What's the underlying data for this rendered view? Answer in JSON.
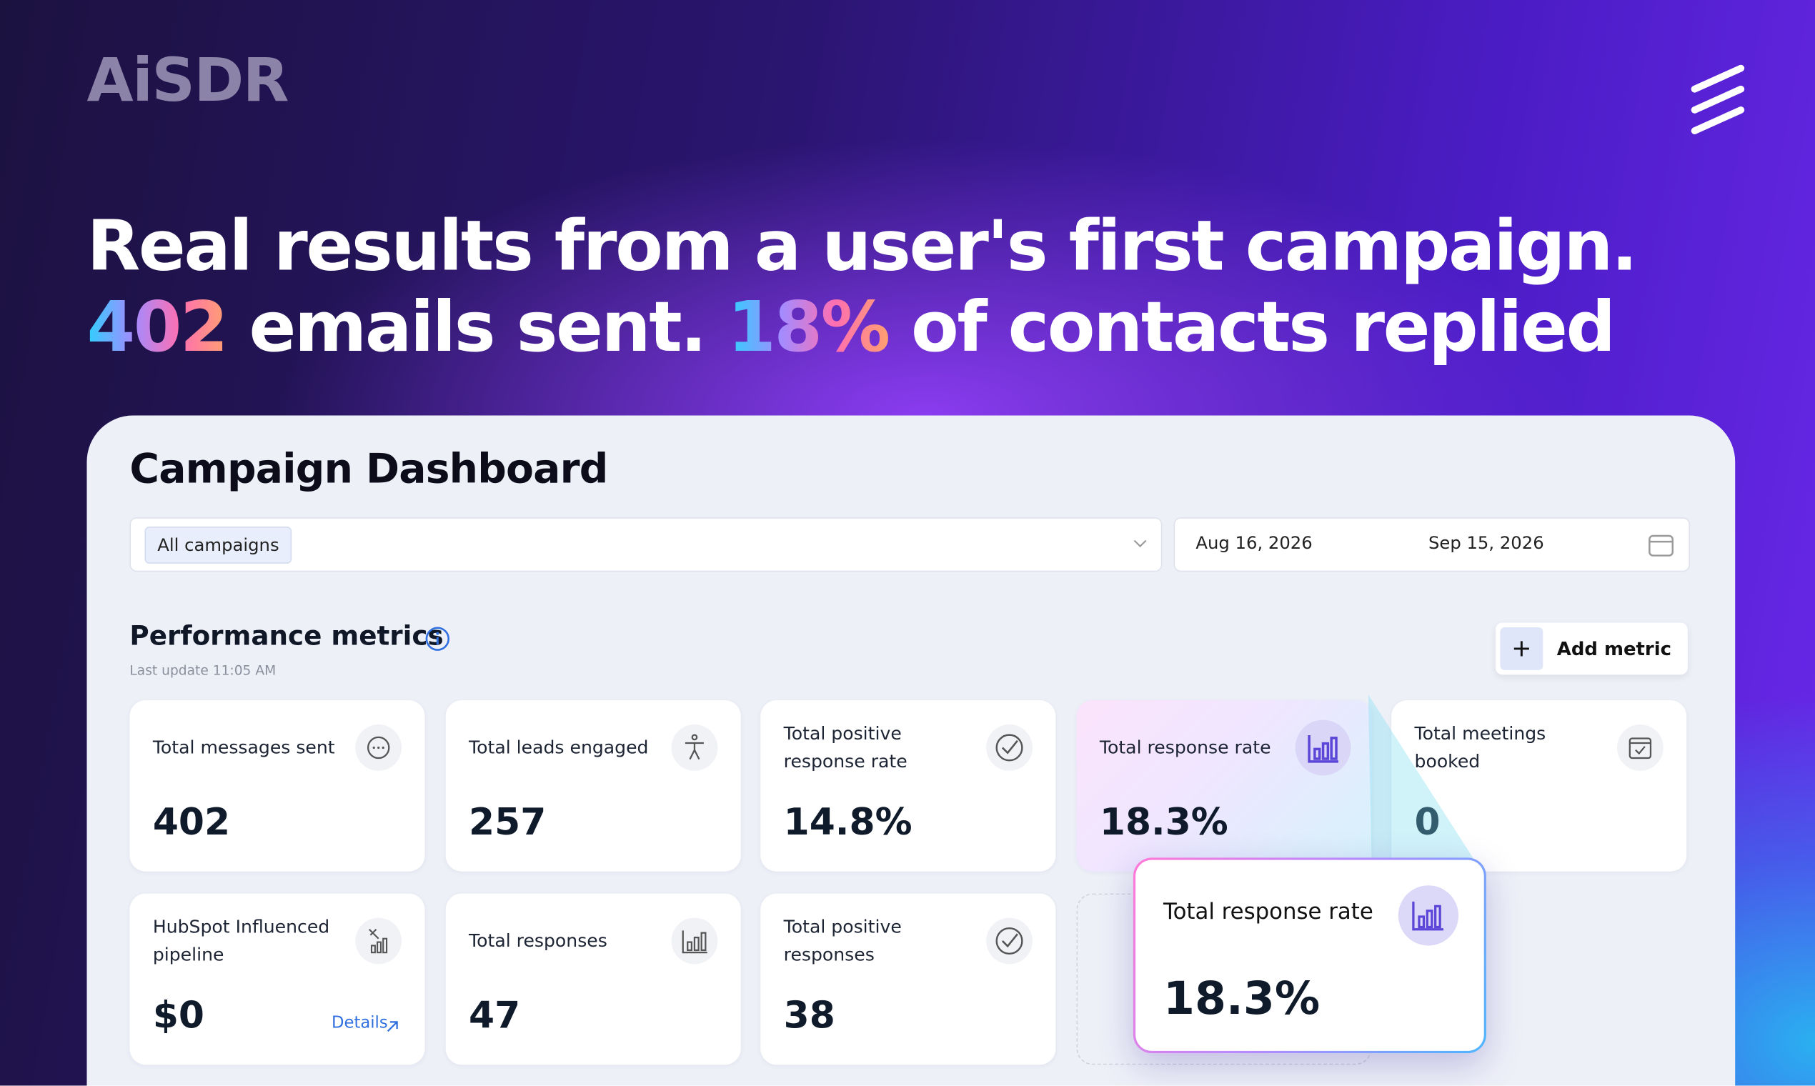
{
  "header": {
    "logo": "AiSDR",
    "headline_line1": "Real results from a user's first campaign.",
    "headline_line2": [
      {
        "text": "402",
        "accent": true
      },
      {
        "text": " emails sent. ",
        "accent": false
      },
      {
        "text": "18%",
        "accent": true
      },
      {
        "text": " of contacts replied",
        "accent": false
      }
    ]
  },
  "dashboard": {
    "title": "Campaign Dashboard",
    "filter": "All campaigns",
    "date_start": "Aug 16, 2026",
    "date_end": "Sep 15, 2026",
    "section_title": "Performance metrics",
    "last_update": "Last update 11:05 AM",
    "add_button": "Add metric",
    "cards": [
      {
        "label": "Total messages sent",
        "value": "402"
      },
      {
        "label": "Total leads engaged",
        "value": "257"
      },
      {
        "label": "Total positive response rate",
        "value": "14.8%"
      },
      {
        "label": "Total response rate",
        "value": "18.3%"
      },
      {
        "label": "Total meetings booked",
        "value": "0"
      },
      {
        "label": "HubSpot Influenced pipeline",
        "value": "$0",
        "link": "Details"
      },
      {
        "label": "Total responses",
        "value": "47"
      },
      {
        "label": "Total positive responses",
        "value": "38"
      }
    ],
    "popup": {
      "label": "Total response rate",
      "value": "18.3%"
    }
  }
}
